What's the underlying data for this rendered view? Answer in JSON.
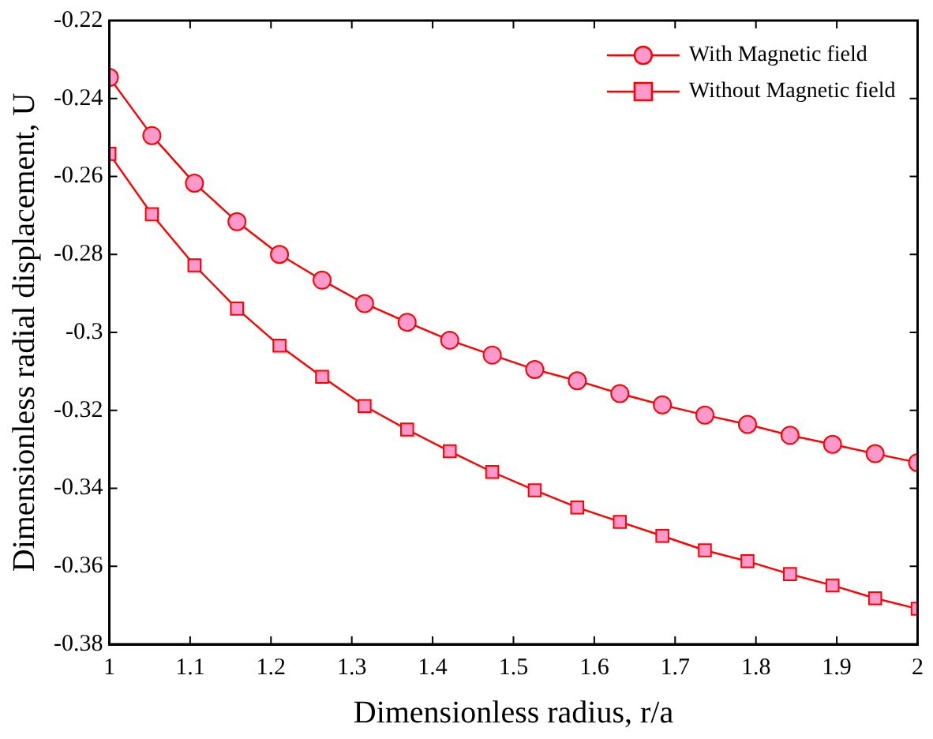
{
  "chart_data": {
    "type": "line",
    "xlabel": "Dimensionless radius, r/a",
    "ylabel": "Dimensionless radial displacement, U",
    "x": [
      1,
      1.0526,
      1.1053,
      1.1579,
      1.2105,
      1.2632,
      1.3158,
      1.3684,
      1.4211,
      1.4737,
      1.5263,
      1.5789,
      1.6316,
      1.6842,
      1.7368,
      1.7895,
      1.8421,
      1.8947,
      1.9474,
      2
    ],
    "series": [
      {
        "name": "With Magnetic field",
        "color": "#ff0000",
        "marker": "circle",
        "values": [
          -0.2346,
          -0.2495,
          -0.2617,
          -0.2716,
          -0.28,
          -0.2866,
          -0.2926,
          -0.2974,
          -0.302,
          -0.3058,
          -0.3095,
          -0.3124,
          -0.3157,
          -0.3186,
          -0.3212,
          -0.3236,
          -0.3264,
          -0.3287,
          -0.3311,
          -0.3334
        ]
      },
      {
        "name": "Without Magnetic field",
        "color": "#ff0000",
        "marker": "square",
        "values": [
          -0.2542,
          -0.2697,
          -0.2828,
          -0.2939,
          -0.3034,
          -0.3114,
          -0.3189,
          -0.3249,
          -0.3305,
          -0.3358,
          -0.3405,
          -0.3449,
          -0.3486,
          -0.3522,
          -0.3559,
          -0.3587,
          -0.362,
          -0.3649,
          -0.3682,
          -0.3709
        ]
      }
    ],
    "xlim": [
      1,
      2
    ],
    "xticks": [
      1,
      1.1,
      1.2,
      1.3,
      1.4,
      1.5,
      1.6,
      1.7,
      1.8,
      1.9,
      2
    ],
    "ylim": [
      -0.38,
      -0.22
    ],
    "yticks": [
      -0.38,
      -0.36,
      -0.34,
      -0.32,
      -0.3,
      -0.28,
      -0.26,
      -0.24,
      -0.22
    ],
    "grid": false,
    "legend": "top right",
    "line_style": "solid"
  }
}
